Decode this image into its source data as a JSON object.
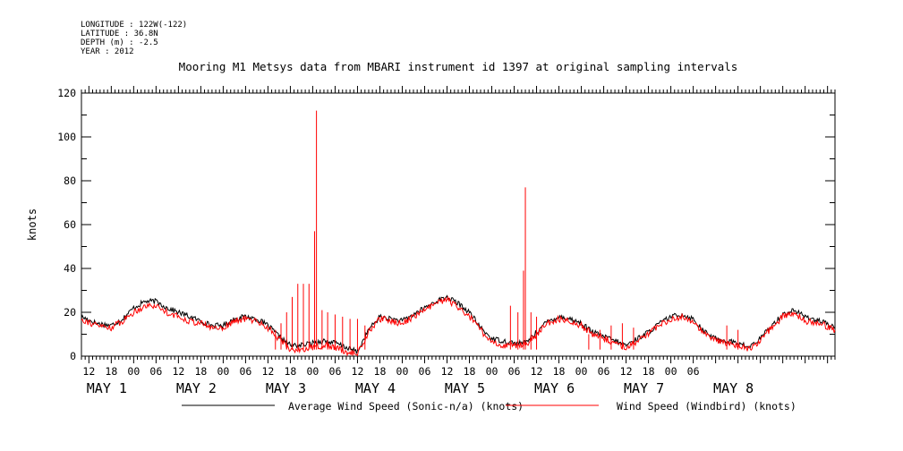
{
  "header": {
    "longitude": "LONGITUDE : 122W(-122)",
    "latitude": "LATITUDE : 36.8N",
    "depth": "DEPTH (m) : -2.5",
    "year": "YEAR : 2012"
  },
  "chart_data": {
    "type": "line",
    "title": "Mooring M1 Metsys data from MBARI instrument id 1397 at original sampling intervals",
    "ylabel": "knots",
    "ylim": [
      0,
      120
    ],
    "yticks": [
      "0",
      "20",
      "40",
      "60",
      "80",
      "100",
      "120"
    ],
    "x_unit": "hours from May 1 00:00 (2012)",
    "xlim": [
      -14,
      188
    ],
    "hour_tick_labels": [
      "12",
      "18",
      "00",
      "06",
      "12",
      "18",
      "00",
      "06",
      "12",
      "18",
      "00",
      "06",
      "12",
      "18",
      "00",
      "06",
      "12",
      "18",
      "00",
      "06",
      "12",
      "18",
      "00",
      "06",
      "12",
      "18",
      "00",
      "06"
    ],
    "day_labels": [
      "MAY 1",
      "MAY 2",
      "MAY 3",
      "MAY 4",
      "MAY 5",
      "MAY 6",
      "MAY 7",
      "MAY 8"
    ],
    "grid": false,
    "legend_position": "bottom",
    "series": [
      {
        "name": "Average Wind Speed (Sonic-n/a) (knots)",
        "color": "#000000",
        "x": [
          -14,
          -10,
          -6,
          -3,
          0,
          3,
          6,
          9,
          12,
          15,
          18,
          21,
          24,
          27,
          30,
          33,
          36,
          39,
          42,
          45,
          48,
          51,
          54,
          57,
          60,
          63,
          66,
          69,
          72,
          75,
          78,
          81,
          84,
          87,
          90,
          93,
          96,
          99,
          102,
          105,
          108,
          111,
          114,
          117,
          120,
          123,
          126,
          129,
          132,
          135,
          138,
          141,
          144,
          147,
          150,
          153,
          156,
          159,
          162,
          165,
          168,
          171,
          174,
          177,
          180,
          184,
          188
        ],
        "values": [
          18,
          15,
          14,
          17,
          22,
          25,
          25,
          22,
          20,
          18,
          16,
          14,
          14,
          17,
          18,
          17,
          14,
          9,
          5,
          5,
          6,
          7,
          6,
          4,
          2,
          12,
          18,
          17,
          16,
          19,
          22,
          25,
          27,
          24,
          20,
          13,
          8,
          7,
          6,
          6,
          11,
          16,
          18,
          17,
          15,
          11,
          9,
          7,
          5,
          8,
          11,
          15,
          18,
          19,
          17,
          11,
          8,
          7,
          6,
          4,
          8,
          14,
          19,
          21,
          18,
          16,
          13
        ]
      },
      {
        "name": "Wind Speed (Windbird) (knots)",
        "color": "#ff0000",
        "x": [
          -14,
          -10,
          -6,
          -3,
          0,
          3,
          6,
          9,
          12,
          15,
          18,
          21,
          24,
          27,
          30,
          33,
          36,
          39,
          42,
          45,
          48,
          51,
          54,
          57,
          60,
          63,
          66,
          69,
          72,
          75,
          78,
          81,
          84,
          87,
          90,
          93,
          96,
          99,
          102,
          105,
          108,
          111,
          114,
          117,
          120,
          123,
          126,
          129,
          132,
          135,
          138,
          141,
          144,
          147,
          150,
          153,
          156,
          159,
          162,
          165,
          168,
          171,
          174,
          177,
          180,
          184,
          188
        ],
        "values": [
          17,
          14,
          13,
          16,
          20,
          23,
          23,
          20,
          18,
          16,
          15,
          13,
          13,
          16,
          17,
          16,
          13,
          8,
          3,
          3,
          4,
          5,
          4,
          2,
          1,
          11,
          17,
          16,
          15,
          18,
          21,
          24,
          26,
          22,
          18,
          12,
          6,
          5,
          5,
          5,
          10,
          15,
          17,
          16,
          14,
          10,
          8,
          6,
          4,
          7,
          10,
          14,
          17,
          18,
          16,
          10,
          7,
          6,
          5,
          3,
          7,
          13,
          18,
          20,
          16,
          15,
          12
        ],
        "spikes": [
          {
            "x": 38,
            "y": 12
          },
          {
            "x": 39.5,
            "y": 15
          },
          {
            "x": 41,
            "y": 20
          },
          {
            "x": 42.5,
            "y": 27
          },
          {
            "x": 44,
            "y": 33
          },
          {
            "x": 45.5,
            "y": 33
          },
          {
            "x": 47,
            "y": 33
          },
          {
            "x": 48.5,
            "y": 57
          },
          {
            "x": 49,
            "y": 112
          },
          {
            "x": 50.5,
            "y": 21
          },
          {
            "x": 52,
            "y": 20
          },
          {
            "x": 54,
            "y": 19
          },
          {
            "x": 56,
            "y": 18
          },
          {
            "x": 58,
            "y": 17
          },
          {
            "x": 60,
            "y": 17
          },
          {
            "x": 62,
            "y": 14
          },
          {
            "x": 101,
            "y": 23
          },
          {
            "x": 103,
            "y": 20
          },
          {
            "x": 104.5,
            "y": 39
          },
          {
            "x": 105,
            "y": 77
          },
          {
            "x": 106.5,
            "y": 20
          },
          {
            "x": 108,
            "y": 18
          },
          {
            "x": 122,
            "y": 10
          },
          {
            "x": 125,
            "y": 12
          },
          {
            "x": 128,
            "y": 14
          },
          {
            "x": 131,
            "y": 15
          },
          {
            "x": 134,
            "y": 13
          },
          {
            "x": 159,
            "y": 14
          },
          {
            "x": 162,
            "y": 12
          }
        ]
      }
    ]
  }
}
